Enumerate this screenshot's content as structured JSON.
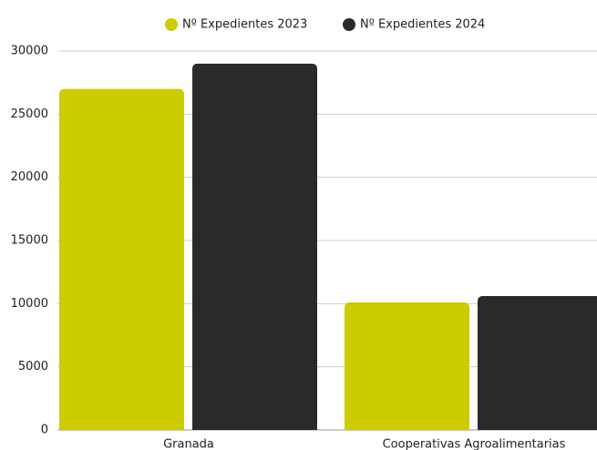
{
  "chart_data": {
    "type": "bar",
    "categories": [
      "Granada",
      "Cooperativas Agroalimentarias"
    ],
    "series": [
      {
        "name": "Nº Expedientes 2023",
        "color": "#cccc00",
        "values": [
          27000,
          10100
        ]
      },
      {
        "name": "Nº Expedientes 2024",
        "color": "#2a2a2a",
        "values": [
          29000,
          10600
        ]
      }
    ],
    "ylim": [
      0,
      30000
    ],
    "yticks": [
      0,
      5000,
      10000,
      15000,
      20000,
      25000,
      30000
    ],
    "grid": true,
    "legend": "top"
  }
}
